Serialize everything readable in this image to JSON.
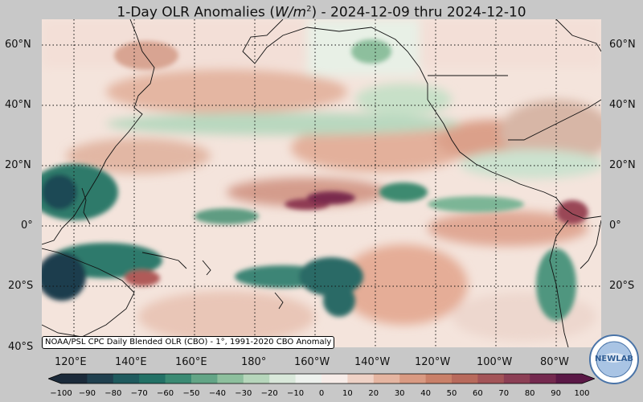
{
  "title": {
    "prefix": "1-Day OLR Anomalies (",
    "unit_base": "W/m",
    "unit_exp": "2",
    "suffix": ") - 2024-12-09 thru 2024-12-10"
  },
  "map": {
    "lat_labels": [
      "60°N",
      "40°N",
      "20°N",
      "0°",
      "20°S",
      "40°S"
    ],
    "lon_labels": [
      "120°E",
      "140°E",
      "160°E",
      "180°",
      "160°W",
      "140°W",
      "120°W",
      "100°W",
      "80°W"
    ],
    "credit": "NOAA/PSL CPC Daily Blended OLR (CBO) - 1°, 1991-2020 CBO Anomaly"
  },
  "colorbar": {
    "ticks": [
      "−100",
      "−90",
      "−80",
      "−70",
      "−60",
      "−50",
      "−40",
      "−30",
      "−20",
      "−10",
      "0",
      "10",
      "20",
      "30",
      "40",
      "50",
      "60",
      "70",
      "80",
      "90",
      "100"
    ],
    "colors": [
      "#1b2a3a",
      "#20404f",
      "#1f5a5e",
      "#237166",
      "#3b8a73",
      "#63a586",
      "#8dbf9d",
      "#b6d6bb",
      "#d9e8da",
      "#eef2ee",
      "#f7ece8",
      "#efd2c6",
      "#e5b5a1",
      "#d99a82",
      "#c98069",
      "#b86a5c",
      "#a35458",
      "#8c3f55",
      "#74294f",
      "#5a1846"
    ]
  },
  "logo": {
    "text": "NEWLAB",
    "ring_text": "PHYSICAL SCIENCES LABORATORY"
  }
}
